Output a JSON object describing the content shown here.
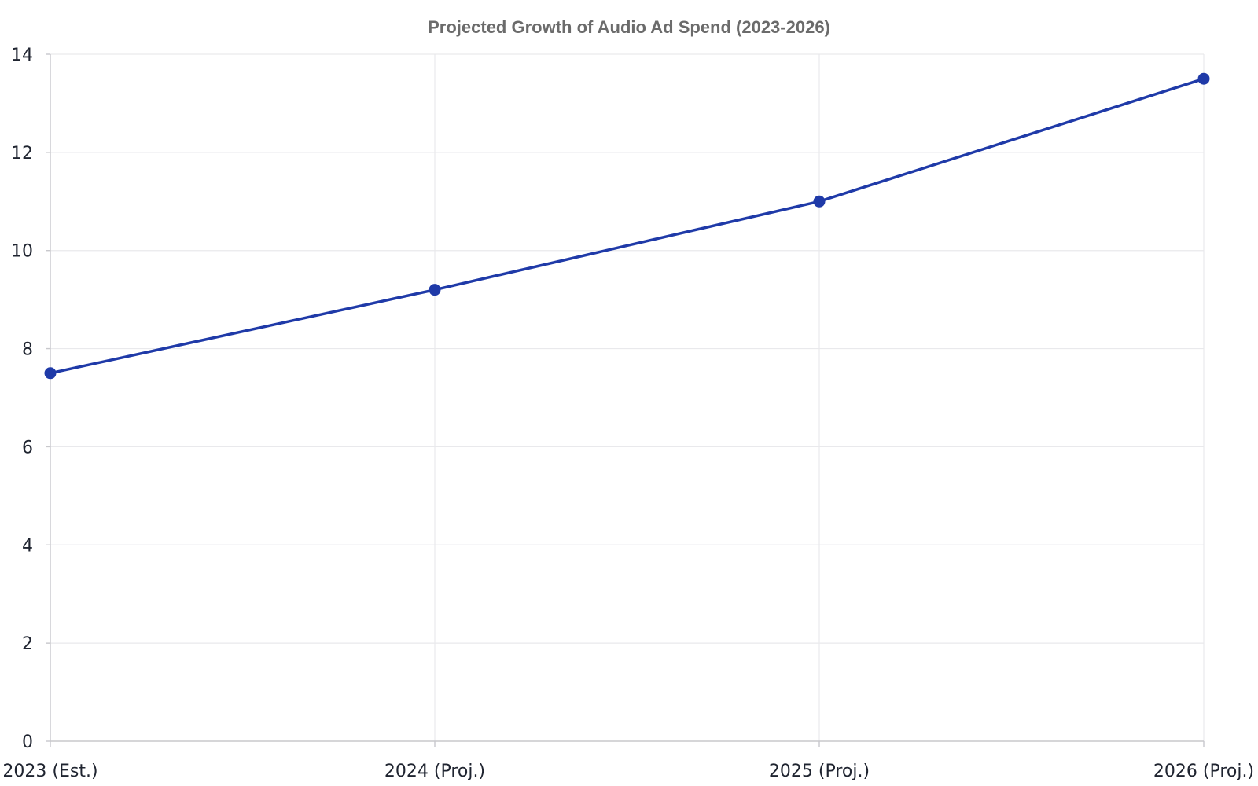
{
  "chart_data": {
    "type": "line",
    "title": "Projected Growth of Audio Ad Spend (2023-2026)",
    "xlabel": "",
    "ylabel": "",
    "categories": [
      "2023 (Est.)",
      "2024 (Proj.)",
      "2025 (Proj.)",
      "2026 (Proj.)"
    ],
    "series": [
      {
        "values": [
          7.5,
          9.2,
          11.0,
          13.5
        ],
        "color": "#1f3aa8"
      }
    ],
    "ylim": [
      0,
      14
    ],
    "yticks": [
      0,
      2,
      4,
      6,
      8,
      10,
      12,
      14
    ],
    "grid": true,
    "legend": "none"
  }
}
